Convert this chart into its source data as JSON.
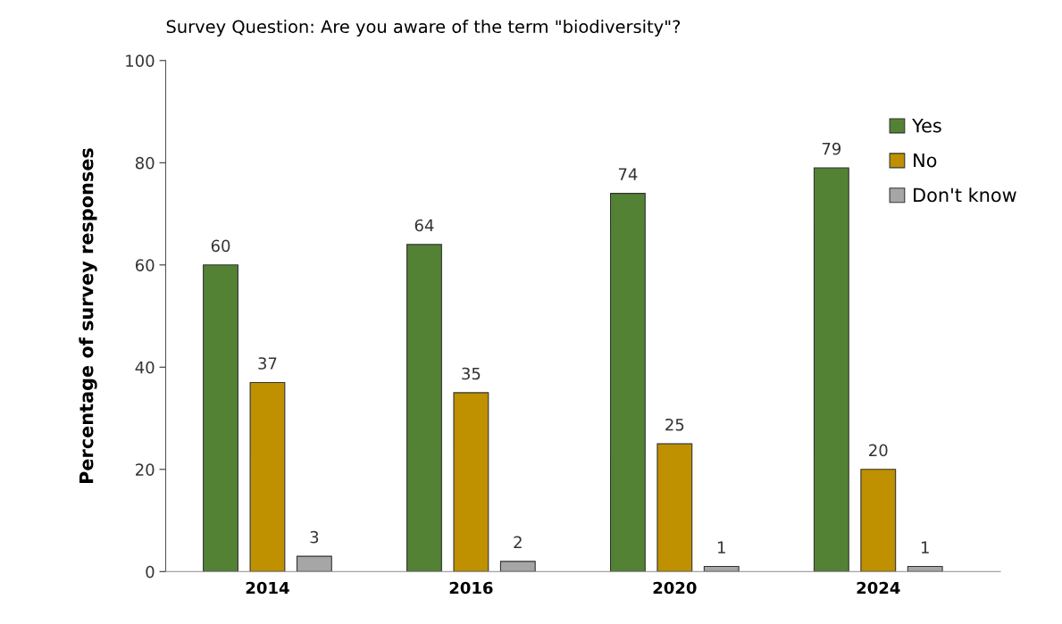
{
  "chart_data": {
    "type": "bar",
    "title": "Survey Question: Are you aware of the term \"biodiversity\"?",
    "ylabel": "Percentage of survey responses",
    "categories": [
      "2014",
      "2016",
      "2020",
      "2024"
    ],
    "series": [
      {
        "name": "Yes",
        "color": "#548235",
        "values": [
          60,
          64,
          74,
          79
        ]
      },
      {
        "name": "No",
        "color": "#bf9000",
        "values": [
          37,
          35,
          25,
          20
        ]
      },
      {
        "name": "Don't know",
        "color": "#a6a6a6",
        "values": [
          3,
          2,
          1,
          1
        ]
      }
    ],
    "ylim": [
      0,
      100
    ],
    "yticks": [
      0,
      20,
      40,
      60,
      80,
      100
    ],
    "data_labels": true,
    "grid": false,
    "legend": "top right"
  }
}
